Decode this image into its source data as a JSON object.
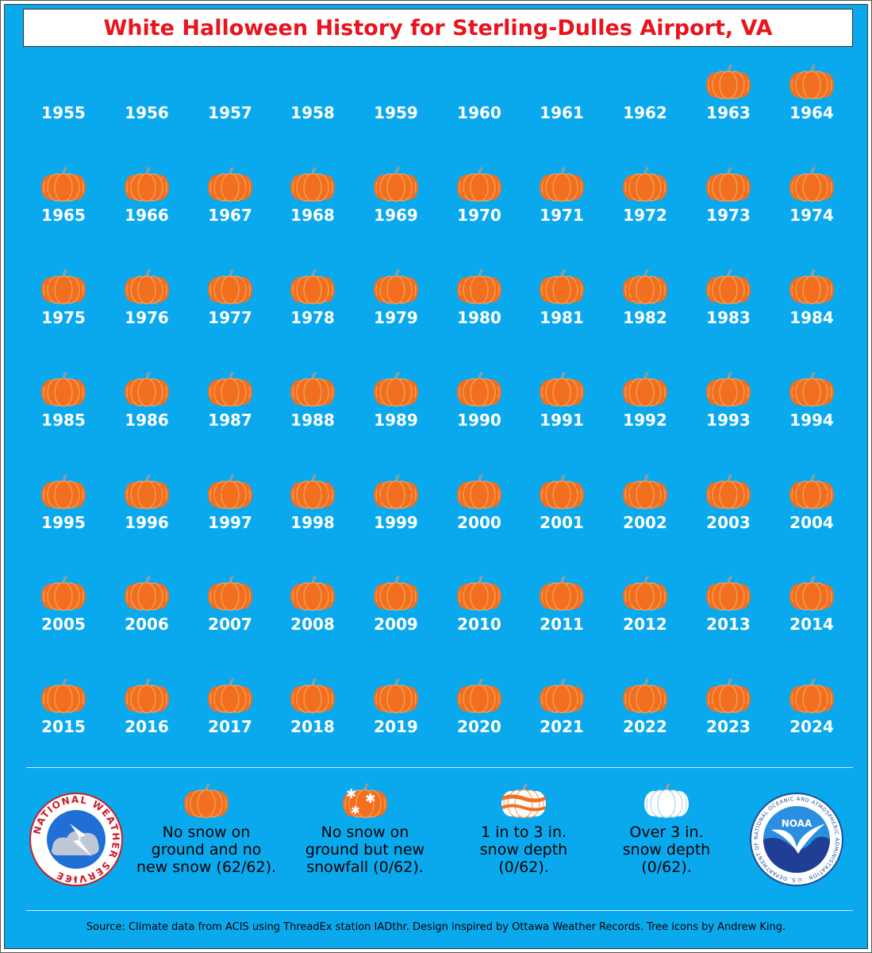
{
  "title": "White Halloween History for Sterling-Dulles Airport, VA",
  "colors": {
    "background": "#0aa9ee",
    "title": "#e8141e",
    "pumpkin": "#f26f1f",
    "pumpkin_rib": "#f7a25c",
    "stem": "#9a9a9a"
  },
  "chart_data": {
    "type": "table",
    "title": "White Halloween History for Sterling-Dulles Airport, VA",
    "years": [
      1955,
      1956,
      1957,
      1958,
      1959,
      1960,
      1961,
      1962,
      1963,
      1964,
      1965,
      1966,
      1967,
      1968,
      1969,
      1970,
      1971,
      1972,
      1973,
      1974,
      1975,
      1976,
      1977,
      1978,
      1979,
      1980,
      1981,
      1982,
      1983,
      1984,
      1985,
      1986,
      1987,
      1988,
      1989,
      1990,
      1991,
      1992,
      1993,
      1994,
      1995,
      1996,
      1997,
      1998,
      1999,
      2000,
      2001,
      2002,
      2003,
      2004,
      2005,
      2006,
      2007,
      2008,
      2009,
      2010,
      2011,
      2012,
      2013,
      2014,
      2015,
      2016,
      2017,
      2018,
      2019,
      2020,
      2021,
      2022,
      2023,
      2024
    ],
    "category_icons": {
      "none": "no-data",
      "no_snow": "orange-pumpkin",
      "new_snowfall": "pumpkin-with-snowflakes",
      "depth_1_3": "white-striped-pumpkin",
      "depth_over_3": "white-pumpkin"
    },
    "categories_by_year": [
      "none",
      "none",
      "none",
      "none",
      "none",
      "none",
      "none",
      "none",
      "no_snow",
      "no_snow",
      "no_snow",
      "no_snow",
      "no_snow",
      "no_snow",
      "no_snow",
      "no_snow",
      "no_snow",
      "no_snow",
      "no_snow",
      "no_snow",
      "no_snow",
      "no_snow",
      "no_snow",
      "no_snow",
      "no_snow",
      "no_snow",
      "no_snow",
      "no_snow",
      "no_snow",
      "no_snow",
      "no_snow",
      "no_snow",
      "no_snow",
      "no_snow",
      "no_snow",
      "no_snow",
      "no_snow",
      "no_snow",
      "no_snow",
      "no_snow",
      "no_snow",
      "no_snow",
      "no_snow",
      "no_snow",
      "no_snow",
      "no_snow",
      "no_snow",
      "no_snow",
      "no_snow",
      "no_snow",
      "no_snow",
      "no_snow",
      "no_snow",
      "no_snow",
      "no_snow",
      "no_snow",
      "no_snow",
      "no_snow",
      "no_snow",
      "no_snow",
      "no_snow",
      "no_snow",
      "no_snow",
      "no_snow",
      "no_snow",
      "no_snow",
      "no_snow",
      "no_snow",
      "no_snow",
      "no_snow"
    ],
    "legend": [
      {
        "key": "no_snow",
        "icon": "orange-pumpkin",
        "label": "No snow on ground and no new snow (62/62).",
        "count": 62,
        "total": 62
      },
      {
        "key": "new_snowfall",
        "icon": "pumpkin-with-snowflakes",
        "label": "No snow on ground but new snowfall (0/62).",
        "count": 0,
        "total": 62
      },
      {
        "key": "depth_1_3",
        "icon": "white-striped-pumpkin",
        "label": "1 in to 3 in. snow depth (0/62).",
        "count": 0,
        "total": 62
      },
      {
        "key": "depth_over_3",
        "icon": "white-pumpkin",
        "label": "Over 3 in. snow depth (0/62).",
        "count": 0,
        "total": 62
      }
    ]
  },
  "logos": {
    "nws": {
      "icon": "national-weather-service-logo",
      "text": "NATIONAL WEATHER SERVICE"
    },
    "noaa": {
      "icon": "noaa-logo",
      "text": "NOAA",
      "ring_text": "NATIONAL OCEANIC AND ATMOSPHERIC ADMINISTRATION · U.S. DEPARTMENT OF COMMERCE"
    }
  },
  "legend_lines": [
    [
      "No snow on",
      "ground and no",
      "new snow (62/62)."
    ],
    [
      "No snow on",
      "ground but new",
      "snowfall (0/62)."
    ],
    [
      "1 in to 3 in.",
      "snow depth",
      "(0/62)."
    ],
    [
      "Over 3 in.",
      "snow depth",
      "(0/62)."
    ]
  ],
  "source": "Source: Climate data from ACIS using ThreadEx station IADthr. Design inspired by Ottawa Weather Records. Tree icons by Andrew King."
}
